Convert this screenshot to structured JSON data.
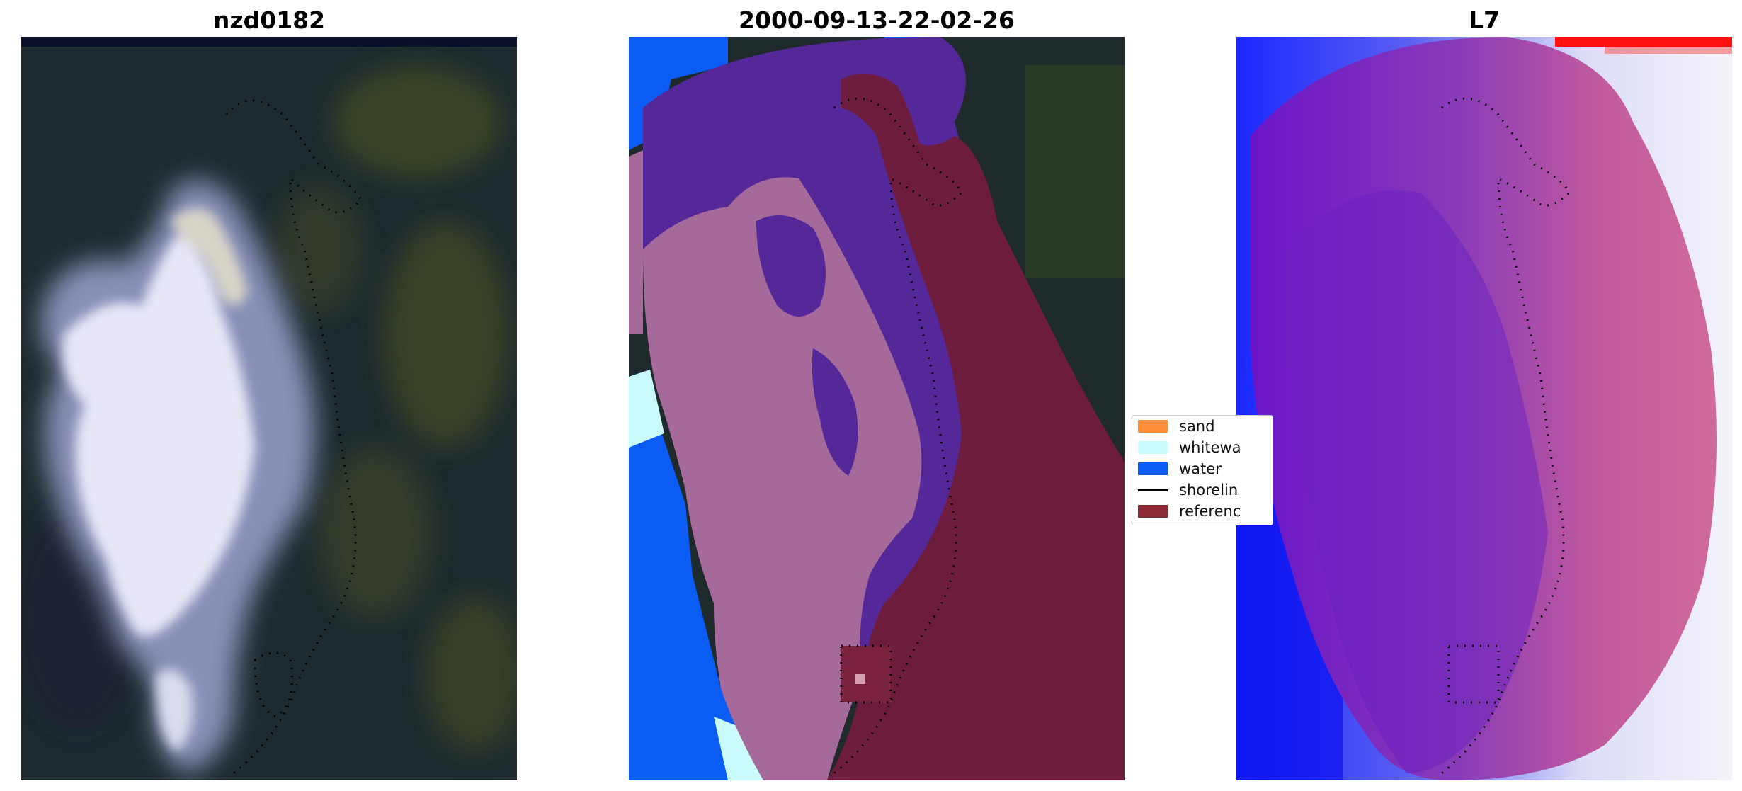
{
  "panels": [
    {
      "title": "nzd0182"
    },
    {
      "title": "2000-09-13-22-02-26"
    },
    {
      "title": "L7"
    }
  ],
  "legend": {
    "items": [
      {
        "label": "sand",
        "color": "#fe8f3a"
      },
      {
        "label": "whitewa",
        "color": "#c9fbfb"
      },
      {
        "label": "water",
        "color": "#0a5cf5"
      },
      {
        "label": "shorelin",
        "color": "#000000"
      },
      {
        "label": "referenc",
        "color": "#8b2a35"
      }
    ]
  },
  "colors": {
    "land_dark": "#1d2a2e",
    "cloud_white": "#eeeefa",
    "vegetation_olive": "#4a5230",
    "class_purple": "#55289a",
    "class_pink": "#a56a9a",
    "class_maroon": "#6e1c3e",
    "class_water": "#0a5cf5",
    "index_blue": "#0000ff",
    "index_white": "#f2f2fa",
    "index_red": "#ff1010"
  }
}
